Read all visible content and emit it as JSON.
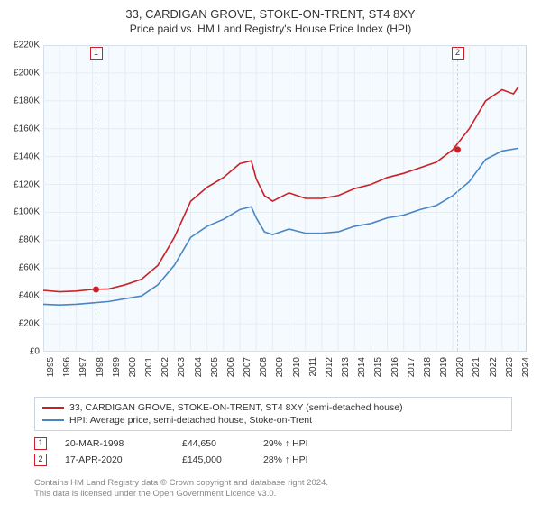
{
  "title": "33, CARDIGAN GROVE, STOKE-ON-TRENT, ST4 8XY",
  "subtitle": "Price paid vs. HM Land Registry's House Price Index (HPI)",
  "chart": {
    "type": "line",
    "background_color": "#f5fafe",
    "grid_color": "#e4ecf4",
    "border_color": "#c8d4e0",
    "x_years": [
      1995,
      1996,
      1997,
      1998,
      1999,
      2000,
      2001,
      2002,
      2003,
      2004,
      2005,
      2006,
      2007,
      2008,
      2009,
      2010,
      2011,
      2012,
      2013,
      2014,
      2015,
      2016,
      2017,
      2018,
      2019,
      2020,
      2021,
      2022,
      2023,
      2024
    ],
    "xlim": [
      1995,
      2024.5
    ],
    "ylim": [
      0,
      220000
    ],
    "ytick_step": 20000,
    "y_ticks": [
      "£0",
      "£20K",
      "£40K",
      "£60K",
      "£80K",
      "£100K",
      "£120K",
      "£140K",
      "£160K",
      "£180K",
      "£200K",
      "£220K"
    ],
    "series": [
      {
        "name": "33, CARDIGAN GROVE, STOKE-ON-TRENT, ST4 8XY (semi-detached house)",
        "color": "#cb2027",
        "line_width": 1.6,
        "data": [
          [
            1995,
            44000
          ],
          [
            1996,
            43000
          ],
          [
            1997,
            43500
          ],
          [
            1998,
            44650
          ],
          [
            1999,
            45000
          ],
          [
            2000,
            48000
          ],
          [
            2001,
            52000
          ],
          [
            2002,
            62000
          ],
          [
            2003,
            82000
          ],
          [
            2004,
            108000
          ],
          [
            2005,
            118000
          ],
          [
            2006,
            125000
          ],
          [
            2007,
            135000
          ],
          [
            2007.7,
            137000
          ],
          [
            2008,
            124000
          ],
          [
            2008.5,
            112000
          ],
          [
            2009,
            108000
          ],
          [
            2010,
            114000
          ],
          [
            2011,
            110000
          ],
          [
            2012,
            110000
          ],
          [
            2013,
            112000
          ],
          [
            2014,
            117000
          ],
          [
            2015,
            120000
          ],
          [
            2016,
            125000
          ],
          [
            2017,
            128000
          ],
          [
            2018,
            132000
          ],
          [
            2019,
            136000
          ],
          [
            2020,
            145000
          ],
          [
            2021,
            160000
          ],
          [
            2022,
            180000
          ],
          [
            2023,
            188000
          ],
          [
            2023.7,
            185000
          ],
          [
            2024,
            190000
          ]
        ]
      },
      {
        "name": "HPI: Average price, semi-detached house, Stoke-on-Trent",
        "color": "#4a86c5",
        "line_width": 1.6,
        "data": [
          [
            1995,
            34000
          ],
          [
            1996,
            33500
          ],
          [
            1997,
            34000
          ],
          [
            1998,
            35000
          ],
          [
            1999,
            36000
          ],
          [
            2000,
            38000
          ],
          [
            2001,
            40000
          ],
          [
            2002,
            48000
          ],
          [
            2003,
            62000
          ],
          [
            2004,
            82000
          ],
          [
            2005,
            90000
          ],
          [
            2006,
            95000
          ],
          [
            2007,
            102000
          ],
          [
            2007.7,
            104000
          ],
          [
            2008,
            96000
          ],
          [
            2008.5,
            86000
          ],
          [
            2009,
            84000
          ],
          [
            2010,
            88000
          ],
          [
            2011,
            85000
          ],
          [
            2012,
            85000
          ],
          [
            2013,
            86000
          ],
          [
            2014,
            90000
          ],
          [
            2015,
            92000
          ],
          [
            2016,
            96000
          ],
          [
            2017,
            98000
          ],
          [
            2018,
            102000
          ],
          [
            2019,
            105000
          ],
          [
            2020,
            112000
          ],
          [
            2021,
            122000
          ],
          [
            2022,
            138000
          ],
          [
            2023,
            144000
          ],
          [
            2024,
            146000
          ]
        ]
      }
    ],
    "sale_markers": [
      {
        "n": "1",
        "x": 1998.22,
        "y": 44650,
        "box_color": "#cb2027"
      },
      {
        "n": "2",
        "x": 2020.29,
        "y": 145000,
        "box_color": "#cb2027"
      }
    ]
  },
  "legend": {
    "items": [
      {
        "color": "#cb2027",
        "label": "33, CARDIGAN GROVE, STOKE-ON-TRENT, ST4 8XY (semi-detached house)"
      },
      {
        "color": "#4a86c5",
        "label": "HPI: Average price, semi-detached house, Stoke-on-Trent"
      }
    ]
  },
  "sales": [
    {
      "n": "1",
      "box_color": "#cb2027",
      "date": "20-MAR-1998",
      "price": "£44,650",
      "pct": "29% ↑ HPI"
    },
    {
      "n": "2",
      "box_color": "#cb2027",
      "date": "17-APR-2020",
      "price": "£145,000",
      "pct": "28% ↑ HPI"
    }
  ],
  "footer": {
    "line1": "Contains HM Land Registry data © Crown copyright and database right 2024.",
    "line2": "This data is licensed under the Open Government Licence v3.0."
  }
}
